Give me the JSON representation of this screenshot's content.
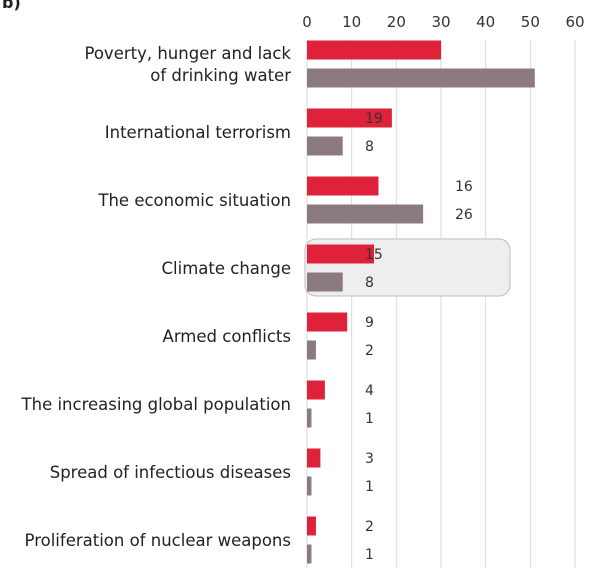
{
  "panel_label": "b)",
  "chart_data": {
    "type": "bar",
    "orientation": "horizontal",
    "xlim": [
      0,
      60
    ],
    "xticks": [
      0,
      10,
      20,
      30,
      40,
      50,
      60
    ],
    "grid": true,
    "categories": [
      [
        "Poverty, hunger and lack",
        "of drinking water"
      ],
      [
        "International terrorism"
      ],
      [
        "The economic situation"
      ],
      [
        "Climate change"
      ],
      [
        "Armed conflicts"
      ],
      [
        "The increasing global population"
      ],
      [
        "Spread of infectious diseases"
      ],
      [
        "Proliferation of nuclear weapons"
      ]
    ],
    "series": [
      {
        "color": "#e0213a",
        "values": [
          30,
          19,
          16,
          15,
          9,
          4,
          3,
          2
        ],
        "labels": [
          "",
          "19",
          "16",
          "15",
          "9",
          "4",
          "3",
          "2"
        ]
      },
      {
        "color": "#8b7b7e",
        "values": [
          51,
          8,
          26,
          8,
          2,
          1,
          1,
          1
        ],
        "labels": [
          "",
          "8",
          "26",
          "8",
          "2",
          "1",
          "1",
          "1"
        ]
      }
    ],
    "highlighted_category": "Climate change"
  }
}
